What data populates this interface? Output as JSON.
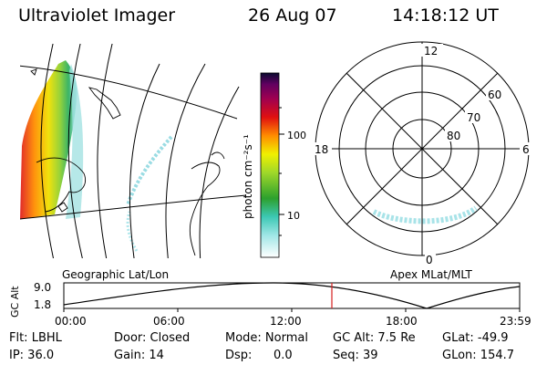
{
  "header": {
    "instrument": "Ultraviolet Imager",
    "date": "26 Aug 07",
    "time": "14:18:12 UT"
  },
  "colorbar": {
    "unit_label": "photon cm⁻²s⁻¹",
    "tick_labels": [
      "100",
      "10"
    ]
  },
  "polar": {
    "mlt_labels": {
      "top": "12",
      "left": "18",
      "right": "6",
      "bottom": "0"
    },
    "lat_labels": [
      "60",
      "70",
      "80"
    ]
  },
  "map": {
    "label": "Geographic Lat/Lon"
  },
  "apex": {
    "label": "Apex MLat/MLT"
  },
  "timeline": {
    "y_axis_label": "GC Alt",
    "y_ticks": [
      "9.0",
      "1.8"
    ],
    "time_ticks": [
      "00:00",
      "06:00",
      "12:00",
      "18:00",
      "23:59"
    ],
    "current_marker_color": "#d62020"
  },
  "status": {
    "filter": "Flt: LBHL",
    "ip": "IP: 36.0",
    "door": "Door: Closed",
    "gain": "Gain: 14",
    "mode": "Mode: Normal",
    "dsp_label": "Dsp:",
    "dsp_value": "0.0",
    "gc_alt": "GC Alt: 7.5 Re",
    "seq": "Seq: 39",
    "glat": "GLat: -49.9",
    "glon": "GLon: 154.7"
  },
  "colors": {
    "aurora_cyan": "#8fd8e0",
    "aurora_strong": "#ff8c00",
    "line": "#000000"
  }
}
